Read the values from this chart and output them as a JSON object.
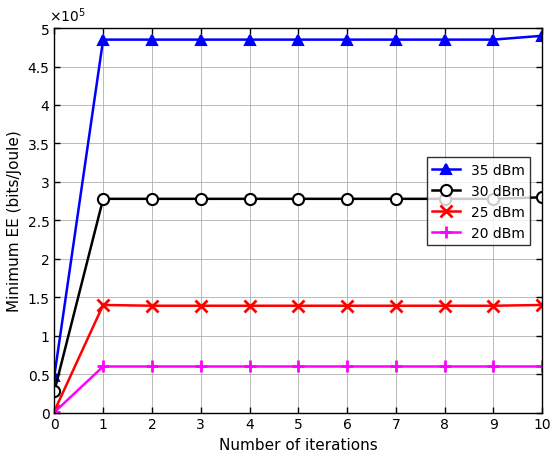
{
  "x": [
    0,
    1,
    2,
    3,
    4,
    5,
    6,
    7,
    8,
    9,
    10
  ],
  "series": [
    {
      "label": "35 dBm",
      "color": "blue",
      "marker": "^",
      "markersize": 7,
      "linewidth": 1.8,
      "values": [
        48000,
        485000,
        485000,
        485000,
        485000,
        485000,
        485000,
        485000,
        485000,
        485000,
        490000
      ],
      "markerfacecolor": "blue",
      "markeredgecolor": "blue"
    },
    {
      "label": "30 dBm",
      "color": "black",
      "marker": "o",
      "markersize": 8,
      "linewidth": 1.8,
      "values": [
        28000,
        278000,
        278000,
        278000,
        278000,
        278000,
        278000,
        278000,
        278000,
        278000,
        280000
      ],
      "markerfacecolor": "white",
      "markeredgecolor": "black"
    },
    {
      "label": "25 dBm",
      "color": "red",
      "marker": "x",
      "markersize": 8,
      "linewidth": 1.8,
      "values": [
        2000,
        140000,
        139000,
        139000,
        139000,
        139000,
        139000,
        139000,
        139000,
        139000,
        140000
      ],
      "markerfacecolor": "red",
      "markeredgecolor": "red"
    },
    {
      "label": "20 dBm",
      "color": "magenta",
      "marker": "+",
      "markersize": 8,
      "linewidth": 1.8,
      "values": [
        500,
        60000,
        60000,
        60000,
        60000,
        60000,
        60000,
        60000,
        60000,
        60000,
        60000
      ],
      "markerfacecolor": "magenta",
      "markeredgecolor": "magenta"
    }
  ],
  "xlabel": "Number of iterations",
  "ylabel": "Minimum EE (bits/Joule)",
  "xlim": [
    0,
    10
  ],
  "ylim": [
    0,
    500000
  ],
  "ytick_values": [
    0,
    50000,
    100000,
    150000,
    200000,
    250000,
    300000,
    350000,
    400000,
    450000,
    500000
  ],
  "ytick_labels": [
    "0",
    "0.5",
    "1",
    "1.5",
    "2",
    "2.5",
    "3",
    "3.5",
    "4",
    "4.5",
    "5"
  ],
  "xticks": [
    0,
    1,
    2,
    3,
    4,
    5,
    6,
    7,
    8,
    9,
    10
  ],
  "legend_loc": "center right",
  "grid": true,
  "figsize": [
    5.58,
    4.6
  ],
  "dpi": 100,
  "tick_fontsize": 10,
  "label_fontsize": 11,
  "legend_fontsize": 10
}
